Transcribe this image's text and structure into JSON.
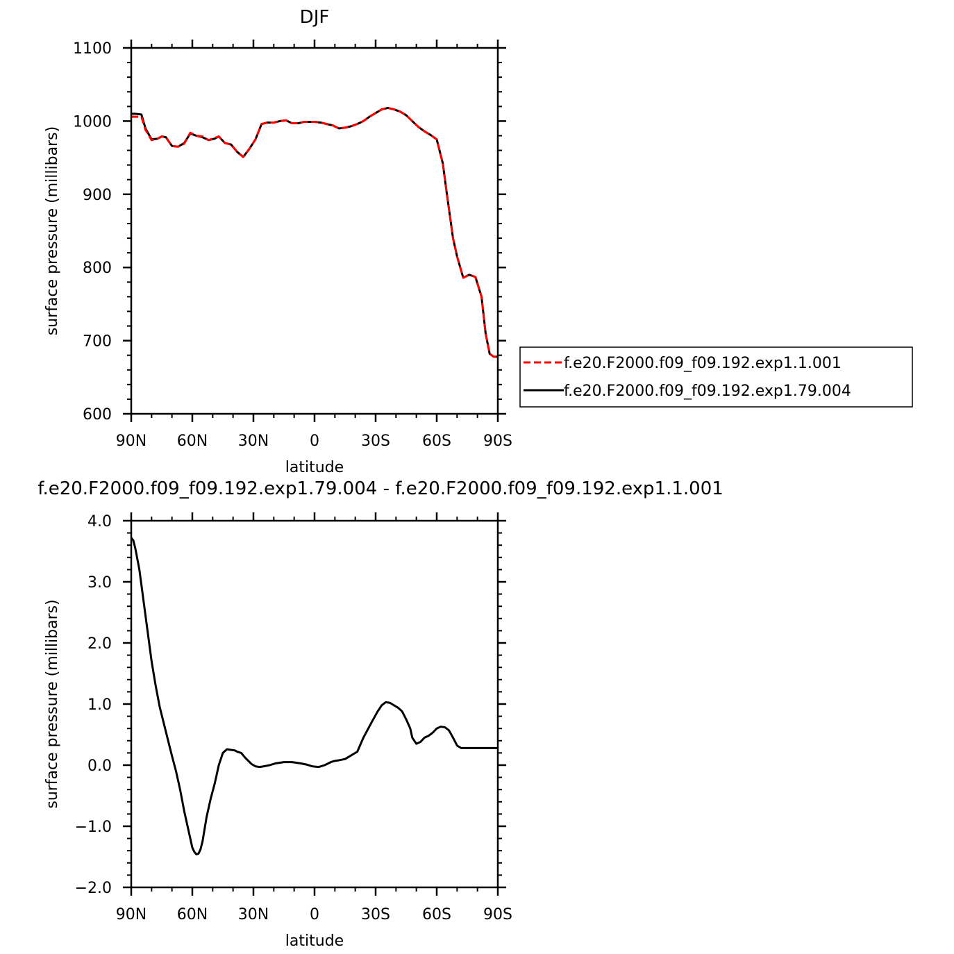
{
  "chart_data": [
    {
      "type": "line",
      "title": "DJF",
      "xlabel": "latitude",
      "ylabel": "surface pressure (millibars)",
      "xlim": [
        90,
        -90
      ],
      "ylim": [
        600,
        1100
      ],
      "x_ticks": [
        {
          "value": 90,
          "label": "90N"
        },
        {
          "value": 60,
          "label": "60N"
        },
        {
          "value": 30,
          "label": "30N"
        },
        {
          "value": 0,
          "label": "0"
        },
        {
          "value": -30,
          "label": "30S"
        },
        {
          "value": -60,
          "label": "60S"
        },
        {
          "value": -90,
          "label": "90S"
        }
      ],
      "y_ticks": [
        {
          "value": 600,
          "label": "600"
        },
        {
          "value": 700,
          "label": "700"
        },
        {
          "value": 800,
          "label": "800"
        },
        {
          "value": 900,
          "label": "900"
        },
        {
          "value": 1000,
          "label": "1000"
        },
        {
          "value": 1100,
          "label": "1100"
        }
      ],
      "legend_position": "right",
      "series": [
        {
          "name": "f.e20.F2000.f09_f09.192.exp1.1.001",
          "color": "#ff0000",
          "style": "dashed",
          "x": [
            90,
            88,
            85,
            83,
            80,
            77,
            75,
            73,
            70,
            67,
            64,
            61,
            58,
            55,
            52,
            49,
            47,
            44,
            41,
            38,
            35,
            32,
            29,
            26,
            23,
            20,
            17,
            14,
            11,
            8,
            5,
            2,
            0,
            -3,
            -6,
            -9,
            -12,
            -15,
            -18,
            -21,
            -24,
            -27,
            -30,
            -33,
            -36,
            -39,
            -42,
            -45,
            -48,
            -51,
            -54,
            -57,
            -60,
            -63,
            -65,
            -67,
            -68,
            -70,
            -73,
            -76,
            -79,
            -82,
            -84,
            -86,
            -88,
            -90
          ],
          "y": [
            1006,
            1006,
            1006,
            988,
            974,
            976,
            979,
            978,
            966,
            965,
            969,
            984,
            980,
            979,
            974,
            977,
            979,
            970,
            968,
            958,
            951,
            962,
            975,
            996,
            998,
            998,
            1000,
            1001,
            997,
            997,
            999,
            999,
            999,
            998,
            996,
            994,
            990,
            991,
            993,
            996,
            1000,
            1006,
            1011,
            1016,
            1018,
            1016,
            1013,
            1008,
            1000,
            992,
            986,
            981,
            975,
            942,
            900,
            860,
            840,
            815,
            786,
            790,
            787,
            760,
            710,
            682,
            678,
            678
          ]
        },
        {
          "name": "f.e20.F2000.f09_f09.192.exp1.79.004",
          "color": "#000000",
          "style": "solid",
          "x": [
            90,
            88,
            85,
            83,
            80,
            77,
            75,
            73,
            70,
            67,
            64,
            61,
            58,
            55,
            52,
            49,
            47,
            44,
            41,
            38,
            35,
            32,
            29,
            26,
            23,
            20,
            17,
            14,
            11,
            8,
            5,
            2,
            0,
            -3,
            -6,
            -9,
            -12,
            -15,
            -18,
            -21,
            -24,
            -27,
            -30,
            -33,
            -36,
            -39,
            -42,
            -45,
            -48,
            -51,
            -54,
            -57,
            -60,
            -63,
            -65,
            -67,
            -68,
            -70,
            -73,
            -76,
            -79,
            -82,
            -84,
            -86,
            -88,
            -90
          ],
          "y": [
            1010,
            1010,
            1009,
            990,
            975,
            976,
            979,
            978,
            966,
            965,
            970,
            983,
            980,
            978,
            974,
            976,
            979,
            970,
            968,
            958,
            951,
            962,
            975,
            996,
            998,
            998,
            1000,
            1001,
            997,
            997,
            999,
            999,
            999,
            998,
            996,
            994,
            990,
            991,
            993,
            996,
            1000,
            1006,
            1011,
            1016,
            1018,
            1016,
            1013,
            1008,
            1000,
            992,
            986,
            981,
            975,
            942,
            900,
            860,
            840,
            815,
            786,
            790,
            787,
            760,
            710,
            682,
            678,
            678
          ]
        }
      ]
    },
    {
      "type": "line",
      "title": "f.e20.F2000.f09_f09.192.exp1.79.004 - f.e20.F2000.f09_f09.192.exp1.1.001",
      "xlabel": "latitude",
      "ylabel": "surface pressure (millibars)",
      "xlim": [
        90,
        -90
      ],
      "ylim": [
        -2.0,
        4.0
      ],
      "x_ticks": [
        {
          "value": 90,
          "label": "90N"
        },
        {
          "value": 60,
          "label": "60N"
        },
        {
          "value": 30,
          "label": "30N"
        },
        {
          "value": 0,
          "label": "0"
        },
        {
          "value": -30,
          "label": "30S"
        },
        {
          "value": -60,
          "label": "60S"
        },
        {
          "value": -90,
          "label": "90S"
        }
      ],
      "y_ticks": [
        {
          "value": -2.0,
          "label": "−2.0"
        },
        {
          "value": -1.0,
          "label": "−1.0"
        },
        {
          "value": 0.0,
          "label": "0.0"
        },
        {
          "value": 1.0,
          "label": "1.0"
        },
        {
          "value": 2.0,
          "label": "2.0"
        },
        {
          "value": 3.0,
          "label": "3.0"
        },
        {
          "value": 4.0,
          "label": "4.0"
        }
      ],
      "series": [
        {
          "color": "#000000",
          "style": "solid",
          "x": [
            90,
            89,
            88,
            86,
            84,
            82,
            80,
            78,
            76,
            73,
            70,
            68,
            66,
            64,
            62,
            60,
            59,
            58,
            57,
            56,
            55,
            54,
            53,
            51,
            49,
            47,
            45,
            43,
            41,
            39,
            38,
            36,
            34,
            31,
            29,
            27,
            25,
            22,
            19,
            15,
            11,
            7,
            4,
            1,
            -2,
            -5,
            -8,
            -10,
            -12,
            -15,
            -18,
            -21,
            -24,
            -28,
            -31,
            -33,
            -35,
            -37,
            -39,
            -41,
            -43,
            -45,
            -47,
            -48,
            -50,
            -52,
            -54,
            -56,
            -58,
            -60,
            -62,
            -64,
            -66,
            -68,
            -70,
            -72,
            -74,
            -76,
            -78,
            -80,
            -81,
            -83,
            -85,
            -87,
            -90
          ],
          "y": [
            3.72,
            3.68,
            3.55,
            3.2,
            2.7,
            2.2,
            1.7,
            1.3,
            0.95,
            0.55,
            0.15,
            -0.1,
            -0.4,
            -0.75,
            -1.05,
            -1.35,
            -1.42,
            -1.46,
            -1.45,
            -1.38,
            -1.25,
            -1.05,
            -0.85,
            -0.55,
            -0.3,
            0.0,
            0.2,
            0.26,
            0.25,
            0.24,
            0.22,
            0.2,
            0.12,
            0.02,
            -0.02,
            -0.03,
            -0.02,
            0.0,
            0.03,
            0.05,
            0.05,
            0.03,
            0.01,
            -0.02,
            -0.03,
            0.0,
            0.05,
            0.07,
            0.08,
            0.1,
            0.16,
            0.22,
            0.45,
            0.7,
            0.88,
            0.98,
            1.03,
            1.02,
            0.98,
            0.94,
            0.88,
            0.75,
            0.6,
            0.45,
            0.35,
            0.38,
            0.45,
            0.48,
            0.53,
            0.6,
            0.63,
            0.62,
            0.57,
            0.45,
            0.32,
            0.28,
            0.28,
            0.28,
            0.28,
            0.28,
            0.28,
            0.28,
            0.28,
            0.28,
            0.28
          ]
        }
      ]
    }
  ]
}
